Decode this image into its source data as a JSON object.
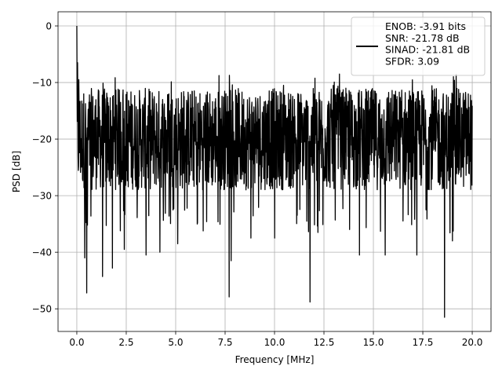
{
  "chart_data": {
    "type": "line",
    "xlabel": "Frequency [MHz]",
    "ylabel": "PSD [dB]",
    "xlim": [
      -0.95,
      20.95
    ],
    "ylim": [
      -54.0,
      2.5
    ],
    "xticks": [
      0.0,
      2.5,
      5.0,
      7.5,
      10.0,
      12.5,
      15.0,
      17.5,
      20.0
    ],
    "xtick_labels": [
      "0.0",
      "2.5",
      "5.0",
      "7.5",
      "10.0",
      "12.5",
      "15.0",
      "17.5",
      "20.0"
    ],
    "yticks": [
      0,
      -10,
      -20,
      -30,
      -40,
      -50
    ],
    "ytick_labels": [
      "0",
      "−10",
      "−20",
      "−30",
      "−40",
      "−50"
    ],
    "grid": true,
    "legend": {
      "location": "top-right",
      "line_color": "#000000",
      "entries": [
        "ENOB: -3.91 bits",
        "SNR: -21.78 dB",
        "SINAD: -21.81 dB",
        "SFDR: 3.09"
      ]
    },
    "series": [
      {
        "color": "#000000",
        "description": "noise-like PSD spectrum, peak 0 dB at 0 MHz",
        "x_range": [
          0.0,
          20.0
        ],
        "sample_count": 1600,
        "noise_band_db": [
          -30,
          -10
        ],
        "peaks": [
          {
            "x": 0.0,
            "y": 0.0
          },
          {
            "x": 0.04,
            "y": -6.5
          },
          {
            "x": 0.1,
            "y": -9.5
          }
        ],
        "dips": [
          {
            "x": 0.4,
            "y": -41.0
          },
          {
            "x": 0.5,
            "y": -47.2
          },
          {
            "x": 1.3,
            "y": -44.3
          },
          {
            "x": 1.8,
            "y": -42.8
          },
          {
            "x": 2.4,
            "y": -39.5
          },
          {
            "x": 3.5,
            "y": -40.5
          },
          {
            "x": 4.2,
            "y": -40.0
          },
          {
            "x": 5.1,
            "y": -38.5
          },
          {
            "x": 7.7,
            "y": -47.9
          },
          {
            "x": 7.8,
            "y": -41.5
          },
          {
            "x": 8.8,
            "y": -37.5
          },
          {
            "x": 10.0,
            "y": -37.5
          },
          {
            "x": 11.8,
            "y": -48.8
          },
          {
            "x": 12.2,
            "y": -36.5
          },
          {
            "x": 14.3,
            "y": -40.5
          },
          {
            "x": 15.6,
            "y": -40.5
          },
          {
            "x": 17.2,
            "y": -40.5
          },
          {
            "x": 18.6,
            "y": -51.5
          },
          {
            "x": 19.0,
            "y": -38.0
          }
        ]
      }
    ]
  }
}
